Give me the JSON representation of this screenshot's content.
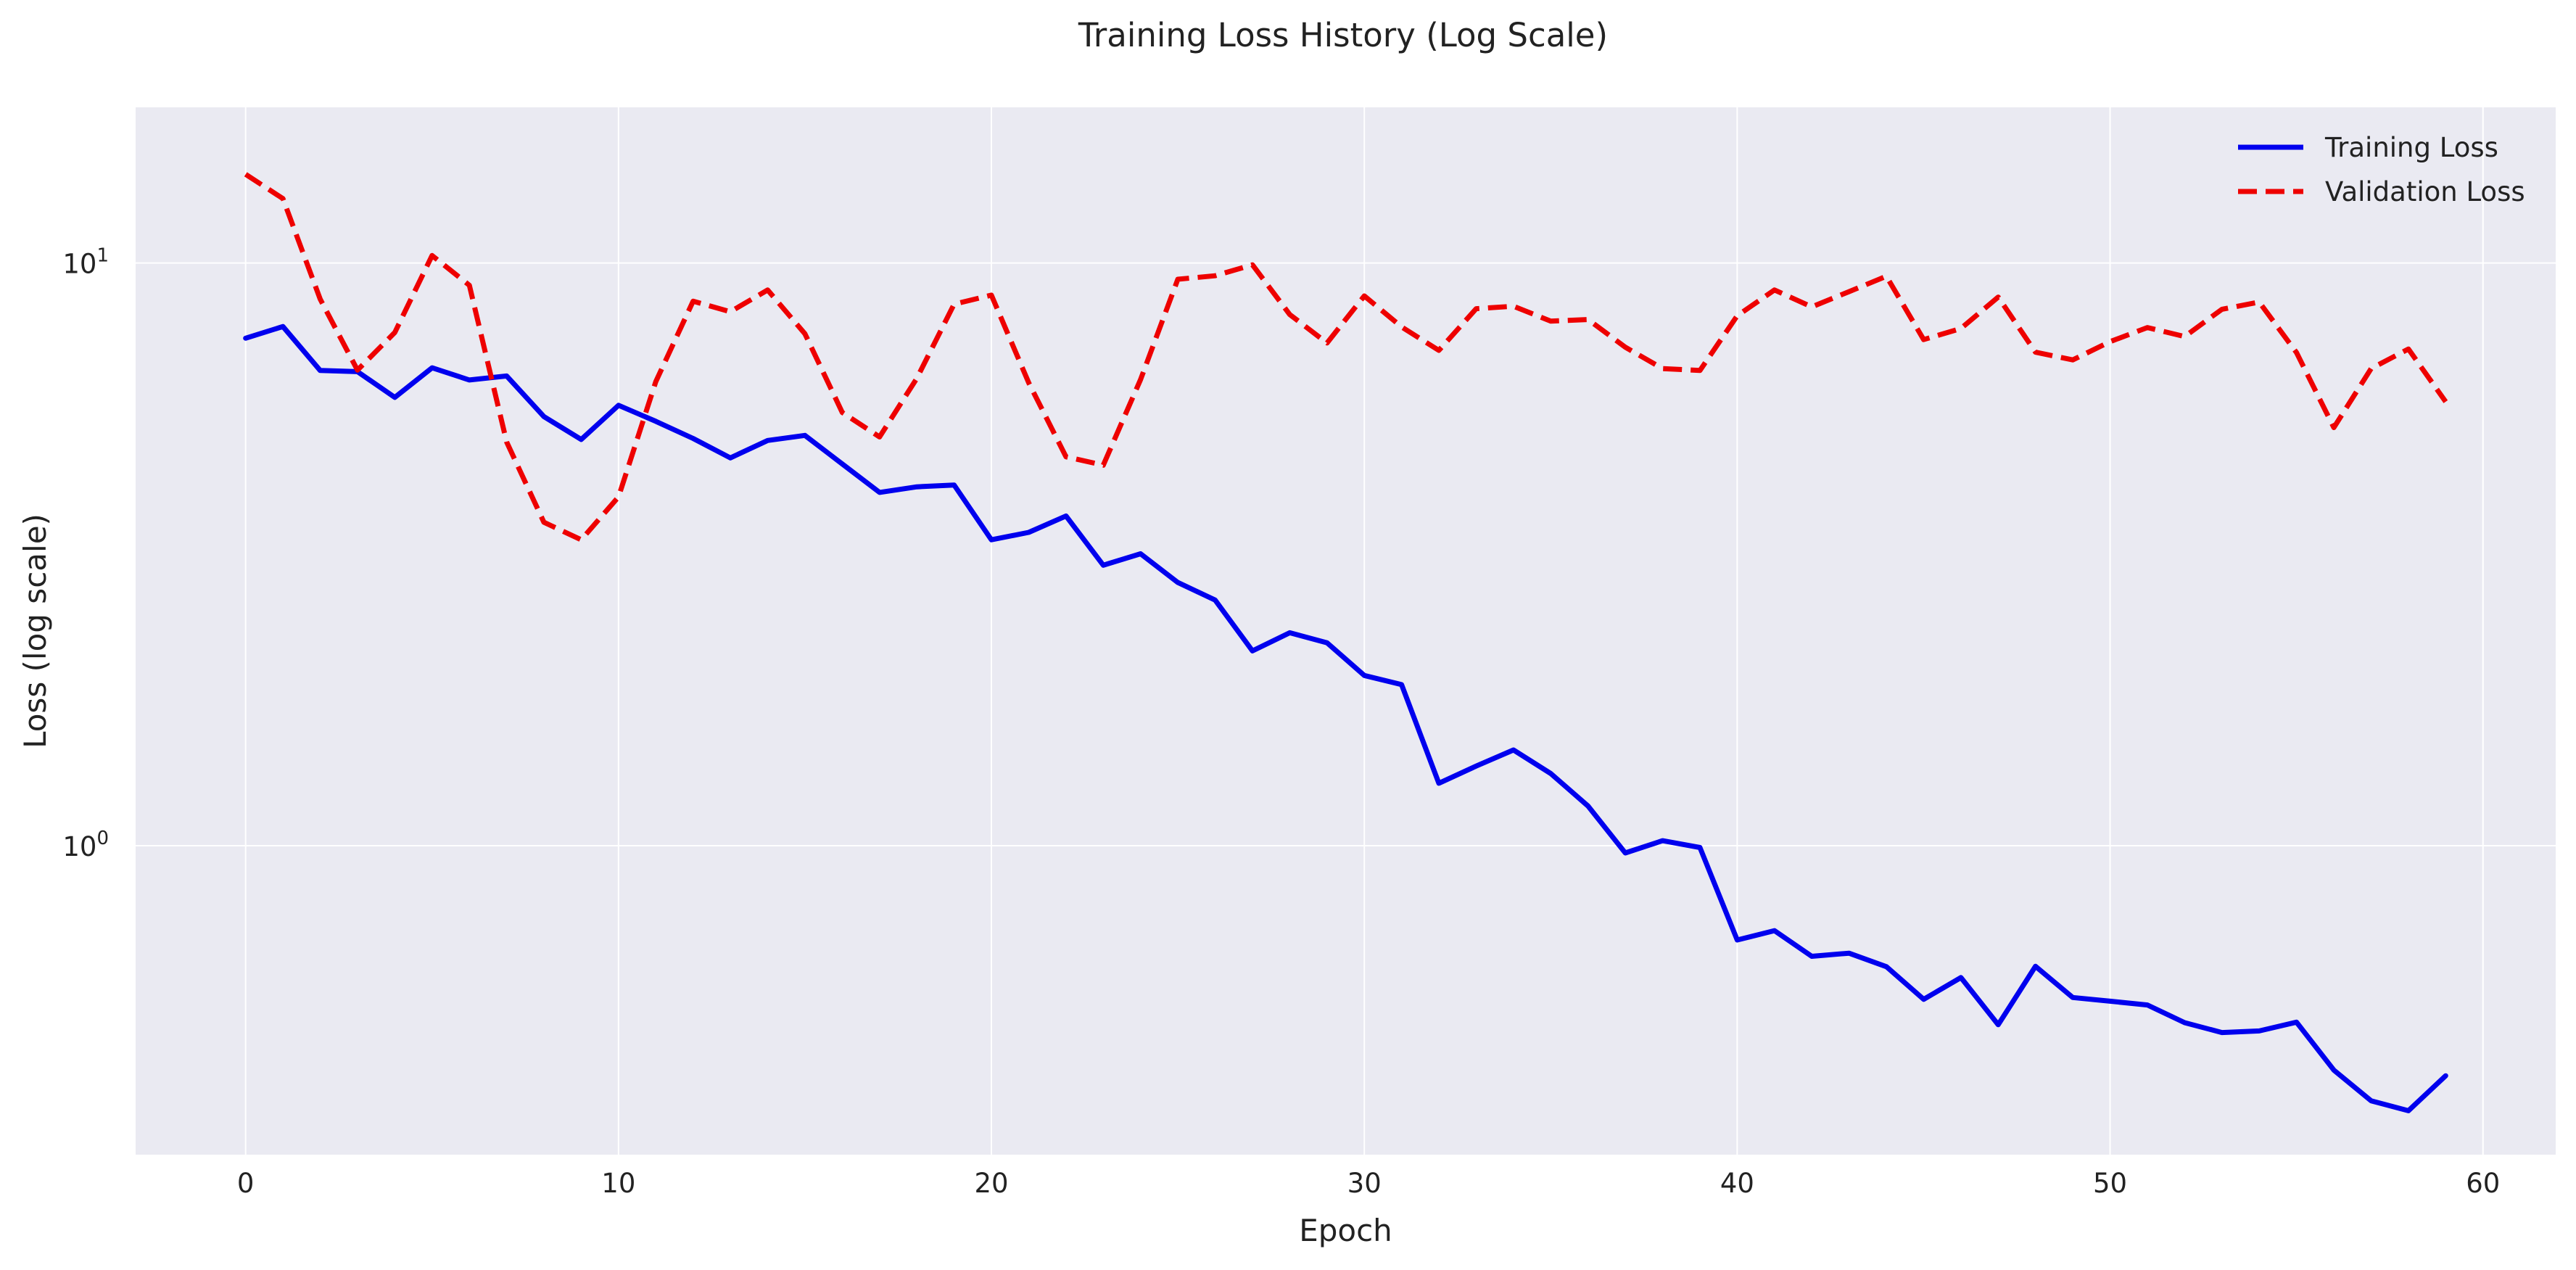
{
  "chart_data": {
    "type": "line",
    "title": "Training Loss History (Log Scale)",
    "xlabel": "Epoch",
    "ylabel": "Loss (log scale)",
    "yscale": "log",
    "xlim": [
      -2.95,
      61.95
    ],
    "ylim": [
      0.295,
      18.5
    ],
    "grid": true,
    "legend_position": "top-right",
    "x_ticks": [
      0,
      10,
      20,
      30,
      40,
      50,
      60
    ],
    "y_ticks": [
      {
        "value": 1,
        "base": "10",
        "exponent": "0"
      },
      {
        "value": 10,
        "base": "10",
        "exponent": "1"
      }
    ],
    "x": [
      0,
      1,
      2,
      3,
      4,
      5,
      6,
      7,
      8,
      9,
      10,
      11,
      12,
      13,
      14,
      15,
      16,
      17,
      18,
      19,
      20,
      21,
      22,
      23,
      24,
      25,
      26,
      27,
      28,
      29,
      30,
      31,
      32,
      33,
      34,
      35,
      36,
      37,
      38,
      39,
      40,
      41,
      42,
      43,
      44,
      45,
      46,
      47,
      48,
      49,
      50,
      51,
      52,
      53,
      54,
      55,
      56,
      57,
      58,
      59
    ],
    "series": [
      {
        "name": "Training Loss",
        "color": "#0000ee",
        "style": "solid",
        "values": [
          7.43,
          7.78,
          6.54,
          6.51,
          5.88,
          6.61,
          6.3,
          6.4,
          5.45,
          4.98,
          5.7,
          5.35,
          5.0,
          4.63,
          4.96,
          5.06,
          4.52,
          4.04,
          4.13,
          4.16,
          3.35,
          3.45,
          3.68,
          3.03,
          3.17,
          2.83,
          2.64,
          2.16,
          2.32,
          2.23,
          1.96,
          1.89,
          1.28,
          1.37,
          1.46,
          1.33,
          1.17,
          0.972,
          1.02,
          0.993,
          0.689,
          0.715,
          0.646,
          0.654,
          0.62,
          0.545,
          0.594,
          0.493,
          0.621,
          0.549,
          0.541,
          0.533,
          0.497,
          0.478,
          0.481,
          0.498,
          0.412,
          0.365,
          0.351,
          0.403
        ]
      },
      {
        "name": "Validation Loss",
        "color": "#ee0000",
        "style": "dashed",
        "values": [
          14.2,
          12.9,
          8.67,
          6.55,
          7.6,
          10.3,
          9.16,
          4.93,
          3.59,
          3.35,
          3.97,
          6.26,
          8.6,
          8.25,
          8.99,
          7.56,
          5.54,
          5.03,
          6.34,
          8.5,
          8.81,
          6.23,
          4.65,
          4.5,
          6.31,
          9.38,
          9.51,
          9.93,
          8.16,
          7.29,
          8.78,
          7.77,
          7.08,
          8.35,
          8.43,
          7.95,
          8.0,
          7.17,
          6.59,
          6.54,
          8.12,
          8.99,
          8.41,
          8.93,
          9.49,
          7.39,
          7.72,
          8.74,
          7.03,
          6.82,
          7.33,
          7.75,
          7.48,
          8.33,
          8.57,
          7.02,
          5.22,
          6.59,
          7.12,
          5.78
        ]
      }
    ]
  },
  "colors": {
    "plot_background": "#eaeaf2",
    "grid": "#ffffff",
    "text": "#222222"
  }
}
